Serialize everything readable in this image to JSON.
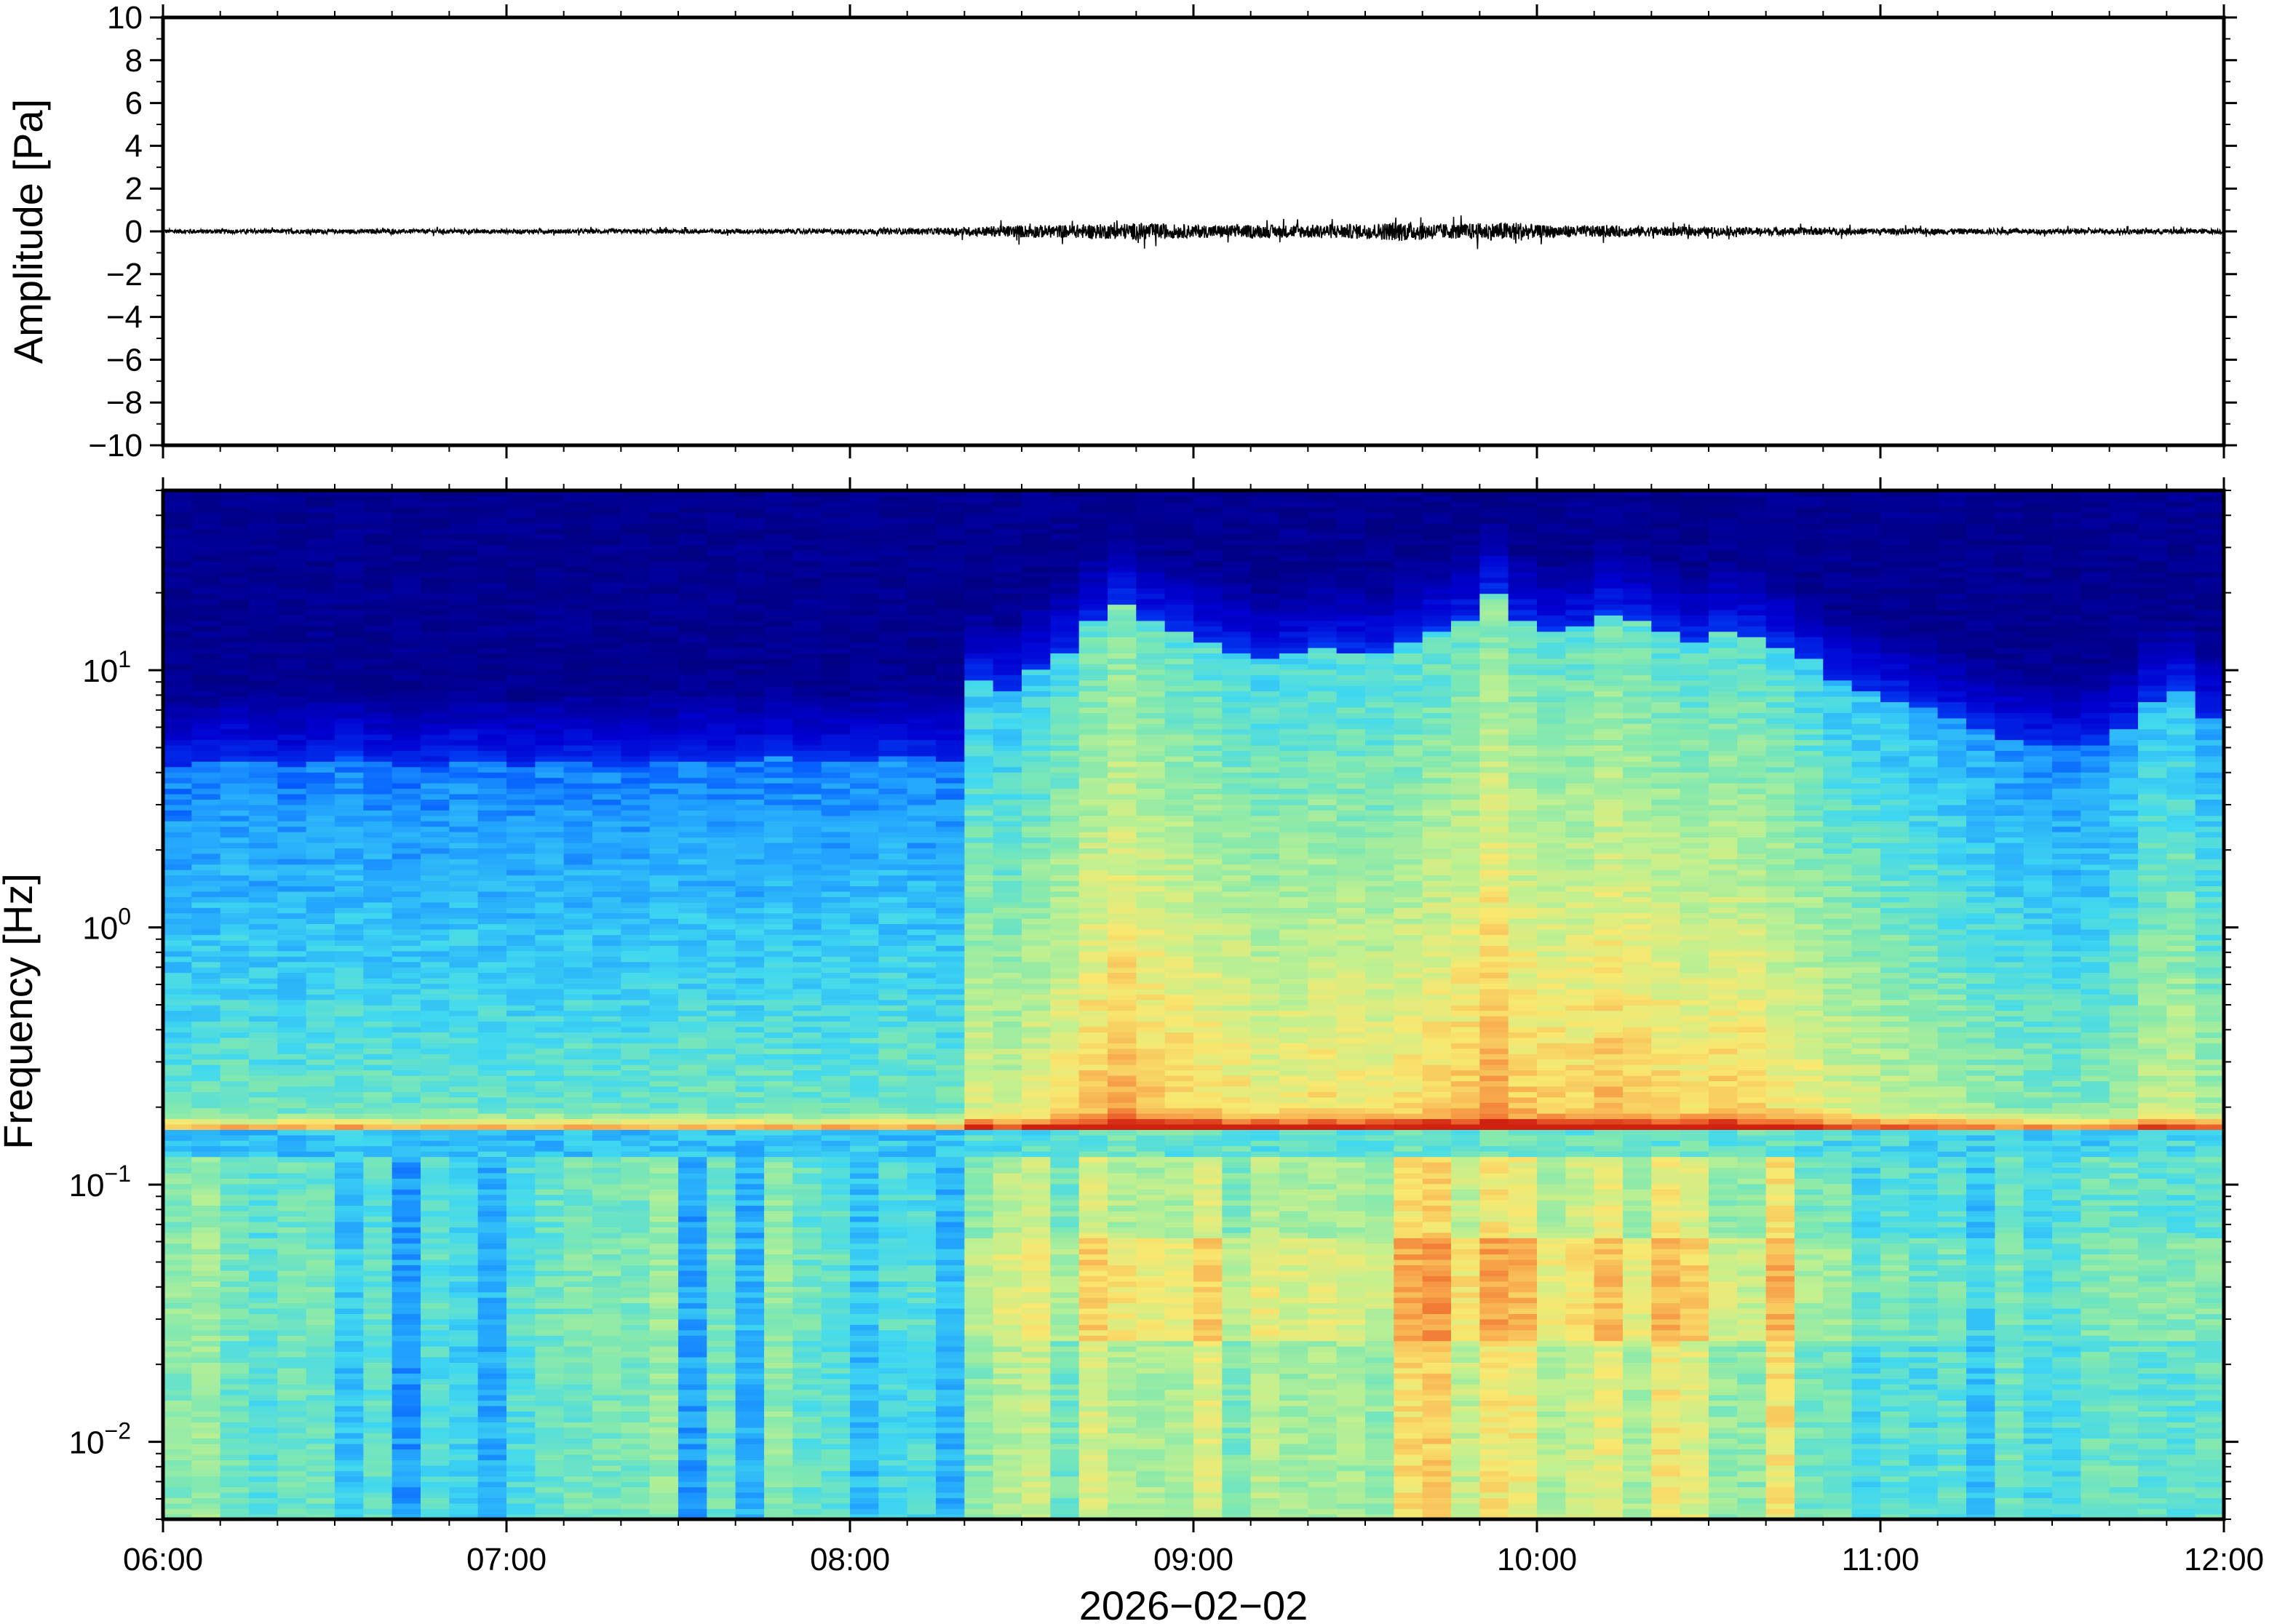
{
  "chart_data": [
    {
      "type": "line",
      "ylabel": "Amplitude [Pa]",
      "xlabel": "",
      "ylim": [
        -10,
        10
      ],
      "yticks": [
        10,
        8,
        6,
        4,
        2,
        0,
        -2,
        -4,
        -6,
        -8,
        -10
      ],
      "ytick_labels": [
        "10",
        "8",
        "6",
        "4",
        "2",
        "0",
        "−2",
        "−4",
        "−6",
        "−8",
        "−10"
      ],
      "xlim_hours": [
        6,
        12
      ],
      "series": [
        {
          "x_hours": [
            6.0,
            6.5,
            7.0,
            7.5,
            8.0,
            8.25,
            8.5,
            8.6,
            8.75,
            8.85,
            9.0,
            9.25,
            9.5,
            9.6,
            9.75,
            9.95,
            10.0,
            10.25,
            10.5,
            11.0,
            11.5,
            12.0
          ],
          "envelope_pa": [
            0.1,
            0.1,
            0.1,
            0.1,
            0.12,
            0.15,
            0.3,
            0.3,
            0.35,
            0.4,
            0.3,
            0.3,
            0.35,
            0.45,
            0.35,
            0.45,
            0.3,
            0.25,
            0.2,
            0.15,
            0.12,
            0.12
          ]
        }
      ],
      "grid": false
    },
    {
      "type": "heatmap",
      "ylabel": "Frequency [Hz]",
      "xlabel": "2026−02−02",
      "yscale": "log",
      "ylim_hz": [
        0.005,
        50
      ],
      "yticks": [
        {
          "base": "10",
          "exp": "1"
        },
        {
          "base": "10",
          "exp": "0"
        },
        {
          "base": "10",
          "exp": "−1"
        },
        {
          "base": "10",
          "exp": "−2"
        }
      ],
      "x_tick_labels": [
        "06:00",
        "07:00",
        "08:00",
        "09:00",
        "10:00",
        "11:00",
        "12:00"
      ],
      "xlim_hours": [
        6,
        12
      ],
      "colormap": [
        "#000080",
        "#0000d0",
        "#0050ff",
        "#20a0ff",
        "#40d8f0",
        "#80e8b0",
        "#c0f090",
        "#f8e870",
        "#f8b050",
        "#f07030",
        "#d02010"
      ],
      "time_columns": 72,
      "activity_profile": [
        0.1,
        0.12,
        0.14,
        0.12,
        0.1,
        0.13,
        0.15,
        0.12,
        0.1,
        0.11,
        0.14,
        0.12,
        0.1,
        0.12,
        0.13,
        0.11,
        0.1,
        0.12,
        0.14,
        0.13,
        0.12,
        0.15,
        0.13,
        0.12,
        0.14,
        0.16,
        0.15,
        0.13,
        0.55,
        0.5,
        0.6,
        0.7,
        0.85,
        0.95,
        0.85,
        0.8,
        0.75,
        0.7,
        0.65,
        0.68,
        0.72,
        0.7,
        0.68,
        0.75,
        0.8,
        0.85,
        1.0,
        0.85,
        0.8,
        0.82,
        0.9,
        0.85,
        0.8,
        0.75,
        0.8,
        0.78,
        0.72,
        0.65,
        0.55,
        0.5,
        0.45,
        0.4,
        0.35,
        0.3,
        0.25,
        0.22,
        0.2,
        0.22,
        0.3,
        0.45,
        0.5,
        0.35
      ],
      "microseism_peak_hz": 0.16,
      "grid": false
    }
  ]
}
